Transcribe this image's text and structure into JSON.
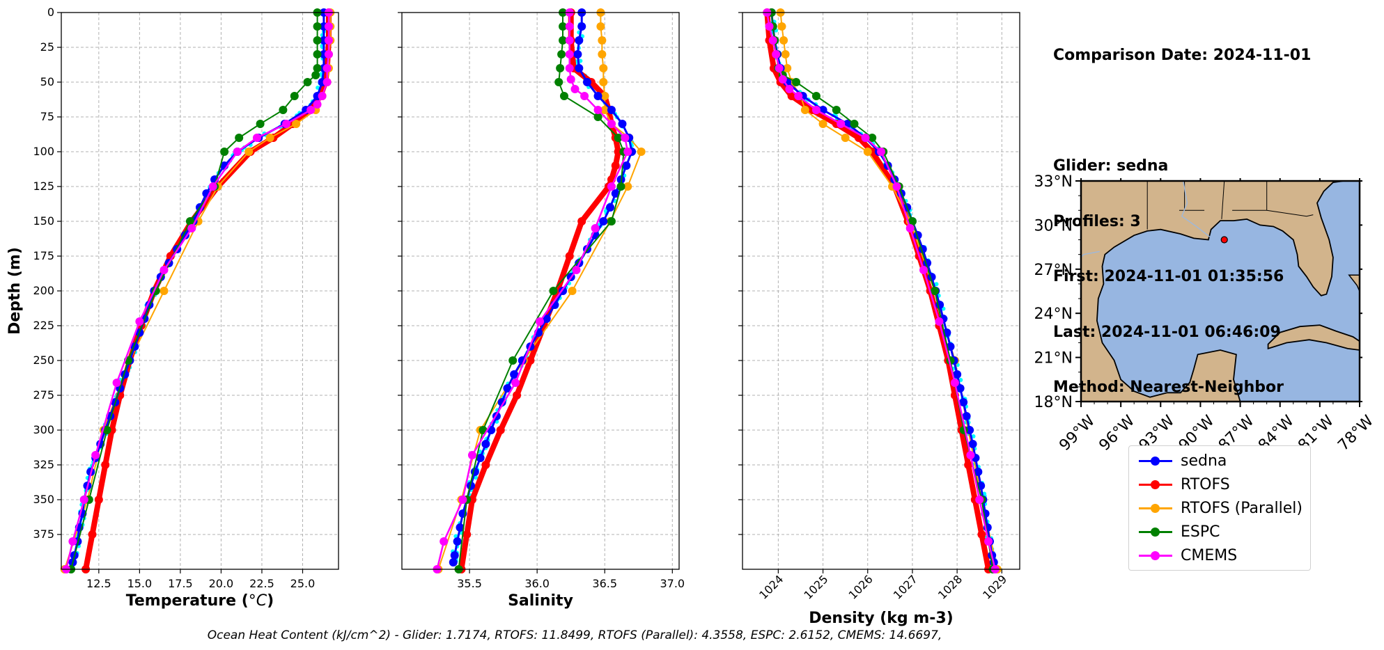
{
  "info": {
    "comparison_date": "Comparison Date: 2024-11-01",
    "glider": "Glider: sedna",
    "profiles": "Profiles: 3",
    "first": "First: 2024-11-01 01:35:56",
    "last": "Last: 2024-11-01 06:46:09",
    "method": "Method: Nearest-Neighbor"
  },
  "footer": "Ocean Heat Content (kJ/cm^2) - Glider: 1.7174,  RTOFS: 11.8499,  RTOFS (Parallel): 4.3558,  ESPC: 2.6152,  CMEMS: 14.6697,",
  "legend": [
    {
      "label": "sedna",
      "color": "#0000ff"
    },
    {
      "label": "RTOFS",
      "color": "#ff0000"
    },
    {
      "label": "RTOFS (Parallel)",
      "color": "#ffa500"
    },
    {
      "label": "ESPC",
      "color": "#008000"
    },
    {
      "label": "CMEMS",
      "color": "#ff00ff"
    }
  ],
  "map": {
    "lat_ticks": [
      "33°N",
      "30°N",
      "27°N",
      "24°N",
      "21°N",
      "18°N"
    ],
    "lon_ticks": [
      "99°W",
      "96°W",
      "93°W",
      "90°W",
      "87°W",
      "84°W",
      "81°W",
      "78°W"
    ],
    "glider_position": {
      "lon": -88.2,
      "lat": 29.0
    },
    "land_color": "#d2b48c",
    "ocean_color": "#97b6e1"
  },
  "chart_data": [
    {
      "type": "line",
      "xlabel": "Temperature (°C)",
      "ylabel": "Depth (m)",
      "xlim": [
        10.2,
        27.2
      ],
      "ylim": [
        400,
        0
      ],
      "xticks": [
        "12.5",
        "15.0",
        "17.5",
        "20.0",
        "22.5",
        "25.0"
      ],
      "yticks": [
        "0",
        "25",
        "50",
        "75",
        "100",
        "125",
        "150",
        "175",
        "200",
        "225",
        "250",
        "275",
        "300",
        "325",
        "350",
        "375"
      ],
      "grid": true,
      "series": [
        {
          "name": "sedna",
          "depth": [
            0,
            10,
            20,
            30,
            40,
            50,
            60,
            70,
            80,
            90,
            100,
            110,
            120,
            130,
            140,
            150,
            160,
            170,
            180,
            190,
            200,
            210,
            220,
            230,
            240,
            250,
            260,
            270,
            280,
            290,
            300,
            310,
            320,
            330,
            340,
            350,
            360,
            370,
            380,
            390,
            395
          ],
          "values": [
            26.3,
            26.3,
            26.3,
            26.3,
            26.3,
            26.2,
            25.9,
            25.2,
            23.9,
            22.3,
            21.0,
            20.2,
            19.6,
            19.1,
            18.7,
            18.3,
            17.8,
            17.3,
            16.8,
            16.3,
            15.9,
            15.6,
            15.3,
            15.0,
            14.7,
            14.4,
            14.1,
            13.8,
            13.5,
            13.2,
            12.9,
            12.6,
            12.3,
            12.0,
            11.8,
            11.6,
            11.5,
            11.3,
            11.2,
            11.0,
            10.9
          ]
        },
        {
          "name": "RTOFS",
          "depth": [
            0,
            20,
            40,
            50,
            60,
            70,
            80,
            90,
            100,
            125,
            150,
            175,
            200,
            225,
            250,
            275,
            300,
            325,
            350,
            375,
            400
          ],
          "values": [
            26.6,
            26.6,
            26.5,
            26.4,
            26.1,
            25.4,
            24.4,
            23.2,
            21.8,
            19.8,
            18.2,
            16.9,
            15.9,
            15.1,
            14.4,
            13.8,
            13.3,
            12.9,
            12.5,
            12.1,
            11.7
          ]
        },
        {
          "name": "RTOFS (Parallel)",
          "depth": [
            0,
            10,
            20,
            30,
            40,
            50,
            60,
            70,
            80,
            90,
            100,
            125,
            150,
            200,
            250,
            300,
            350,
            400
          ],
          "values": [
            26.7,
            26.7,
            26.7,
            26.6,
            26.6,
            26.5,
            26.2,
            25.8,
            24.6,
            23.0,
            21.7,
            19.8,
            18.6,
            16.5,
            14.4,
            12.8,
            11.8,
            10.4
          ]
        },
        {
          "name": "ESPC",
          "depth": [
            0,
            10,
            20,
            30,
            40,
            45,
            50,
            60,
            70,
            80,
            90,
            100,
            125,
            150,
            200,
            250,
            300,
            350,
            400
          ],
          "values": [
            25.9,
            25.9,
            25.9,
            25.9,
            25.9,
            25.8,
            25.3,
            24.5,
            23.8,
            22.4,
            21.1,
            20.2,
            19.6,
            18.1,
            16.0,
            14.3,
            13.0,
            11.9,
            10.8
          ]
        },
        {
          "name": "CMEMS",
          "depth": [
            0,
            10,
            20,
            30,
            40,
            50,
            60,
            66,
            70,
            80,
            90,
            100,
            125,
            155,
            185,
            222,
            266,
            318,
            350,
            380,
            400
          ],
          "values": [
            26.6,
            26.6,
            26.6,
            26.6,
            26.5,
            26.5,
            26.2,
            25.9,
            25.5,
            24.0,
            22.2,
            21.0,
            19.5,
            18.2,
            16.5,
            15.0,
            13.6,
            12.3,
            11.6,
            10.9,
            10.5
          ]
        }
      ]
    },
    {
      "type": "line",
      "xlabel": "Salinity",
      "ylabel": "",
      "xlim": [
        35.0,
        37.05
      ],
      "ylim": [
        400,
        0
      ],
      "xticks": [
        "35.5",
        "36.0",
        "36.5",
        "37.0"
      ],
      "grid": true,
      "series": [
        {
          "name": "sedna",
          "depth": [
            0,
            10,
            20,
            30,
            40,
            50,
            60,
            70,
            80,
            90,
            100,
            110,
            120,
            130,
            140,
            150,
            160,
            170,
            180,
            190,
            200,
            210,
            220,
            230,
            240,
            250,
            260,
            270,
            280,
            290,
            300,
            310,
            320,
            330,
            340,
            350,
            360,
            370,
            380,
            390,
            395
          ],
          "values": [
            36.33,
            36.33,
            36.31,
            36.3,
            36.31,
            36.37,
            36.45,
            36.55,
            36.63,
            36.68,
            36.7,
            36.66,
            36.62,
            36.58,
            36.54,
            36.49,
            36.43,
            36.37,
            36.31,
            36.25,
            36.19,
            36.13,
            36.07,
            36.01,
            35.95,
            35.89,
            35.83,
            35.78,
            35.74,
            35.7,
            35.66,
            35.62,
            35.58,
            35.54,
            35.51,
            35.48,
            35.45,
            35.43,
            35.41,
            35.39,
            35.38
          ]
        },
        {
          "name": "RTOFS",
          "depth": [
            0,
            20,
            40,
            50,
            60,
            70,
            80,
            90,
            100,
            110,
            120,
            125,
            150,
            175,
            200,
            225,
            250,
            275,
            300,
            325,
            350,
            375,
            400
          ],
          "values": [
            36.25,
            36.25,
            36.27,
            36.4,
            36.5,
            36.53,
            36.55,
            36.58,
            36.6,
            36.58,
            36.55,
            36.53,
            36.33,
            36.24,
            36.15,
            36.05,
            35.95,
            35.85,
            35.73,
            35.62,
            35.52,
            35.48,
            35.44
          ]
        },
        {
          "name": "RTOFS (Parallel)",
          "depth": [
            0,
            10,
            20,
            30,
            40,
            50,
            60,
            70,
            80,
            90,
            100,
            125,
            150,
            200,
            250,
            300,
            350,
            400
          ],
          "values": [
            36.47,
            36.47,
            36.48,
            36.48,
            36.49,
            36.49,
            36.5,
            36.5,
            36.55,
            36.68,
            36.77,
            36.67,
            36.54,
            36.26,
            35.9,
            35.58,
            35.44,
            35.27
          ]
        },
        {
          "name": "ESPC",
          "depth": [
            0,
            10,
            20,
            30,
            40,
            50,
            60,
            75,
            90,
            100,
            125,
            150,
            200,
            250,
            300,
            350,
            400
          ],
          "values": [
            36.19,
            36.19,
            36.19,
            36.18,
            36.17,
            36.16,
            36.2,
            36.45,
            36.6,
            36.64,
            36.62,
            36.55,
            36.12,
            35.82,
            35.6,
            35.48,
            35.42
          ]
        },
        {
          "name": "CMEMS",
          "depth": [
            0,
            10,
            20,
            30,
            40,
            48,
            55,
            60,
            70,
            80,
            90,
            100,
            125,
            155,
            185,
            222,
            266,
            318,
            350,
            380,
            400
          ],
          "values": [
            36.24,
            36.24,
            36.24,
            36.24,
            36.24,
            36.25,
            36.28,
            36.35,
            36.45,
            36.55,
            36.65,
            36.67,
            36.55,
            36.43,
            36.29,
            36.02,
            35.84,
            35.52,
            35.45,
            35.31,
            35.26
          ]
        }
      ]
    },
    {
      "type": "line",
      "xlabel": "Density (kg m-3)",
      "ylabel": "",
      "xlim": [
        1023.2,
        1029.4
      ],
      "ylim": [
        400,
        0
      ],
      "xticks": [
        "1024",
        "1025",
        "1026",
        "1027",
        "1028",
        "1029"
      ],
      "grid": true,
      "series": [
        {
          "name": "sedna",
          "depth": [
            0,
            10,
            20,
            30,
            40,
            50,
            60,
            70,
            80,
            90,
            100,
            110,
            120,
            130,
            140,
            150,
            160,
            170,
            180,
            190,
            200,
            210,
            220,
            230,
            240,
            250,
            260,
            270,
            280,
            290,
            300,
            310,
            320,
            330,
            340,
            350,
            360,
            370,
            380,
            390,
            395
          ],
          "values": [
            1023.85,
            1023.88,
            1023.92,
            1023.98,
            1024.05,
            1024.2,
            1024.55,
            1025.0,
            1025.55,
            1025.95,
            1026.25,
            1026.45,
            1026.6,
            1026.75,
            1026.88,
            1027.0,
            1027.12,
            1027.23,
            1027.33,
            1027.43,
            1027.52,
            1027.61,
            1027.69,
            1027.77,
            1027.85,
            1027.93,
            1028.0,
            1028.07,
            1028.14,
            1028.21,
            1028.28,
            1028.35,
            1028.41,
            1028.47,
            1028.53,
            1028.58,
            1028.63,
            1028.68,
            1028.73,
            1028.78,
            1028.82
          ]
        },
        {
          "name": "RTOFS",
          "depth": [
            0,
            20,
            40,
            50,
            60,
            70,
            80,
            90,
            100,
            125,
            150,
            175,
            200,
            225,
            250,
            275,
            300,
            325,
            350,
            375,
            400
          ],
          "values": [
            1023.75,
            1023.8,
            1023.9,
            1024.05,
            1024.3,
            1024.75,
            1025.3,
            1025.8,
            1026.1,
            1026.6,
            1026.9,
            1027.15,
            1027.4,
            1027.6,
            1027.8,
            1027.95,
            1028.1,
            1028.25,
            1028.4,
            1028.55,
            1028.7
          ]
        },
        {
          "name": "RTOFS (Parallel)",
          "depth": [
            0,
            10,
            20,
            30,
            40,
            50,
            60,
            70,
            80,
            90,
            100,
            125,
            150,
            200,
            250,
            300,
            350,
            400
          ],
          "values": [
            1024.05,
            1024.08,
            1024.12,
            1024.16,
            1024.2,
            1024.3,
            1024.5,
            1024.6,
            1025.0,
            1025.5,
            1026.0,
            1026.55,
            1026.95,
            1027.5,
            1027.95,
            1028.25,
            1028.55,
            1028.9
          ]
        },
        {
          "name": "ESPC",
          "depth": [
            0,
            10,
            20,
            30,
            40,
            45,
            50,
            60,
            70,
            80,
            90,
            100,
            125,
            150,
            200,
            250,
            300,
            350,
            400
          ],
          "values": [
            1023.85,
            1023.88,
            1023.92,
            1023.96,
            1024.0,
            1024.1,
            1024.4,
            1024.85,
            1025.3,
            1025.7,
            1026.1,
            1026.35,
            1026.7,
            1027.0,
            1027.5,
            1027.85,
            1028.15,
            1028.55,
            1028.8
          ]
        },
        {
          "name": "CMEMS",
          "depth": [
            0,
            10,
            20,
            30,
            40,
            48,
            55,
            60,
            70,
            80,
            90,
            100,
            125,
            155,
            185,
            222,
            266,
            318,
            350,
            380,
            400
          ],
          "values": [
            1023.75,
            1023.8,
            1023.88,
            1023.95,
            1024.02,
            1024.1,
            1024.25,
            1024.45,
            1024.85,
            1025.4,
            1025.95,
            1026.3,
            1026.65,
            1026.95,
            1027.25,
            1027.6,
            1027.95,
            1028.3,
            1028.5,
            1028.7,
            1028.85
          ]
        }
      ]
    }
  ]
}
